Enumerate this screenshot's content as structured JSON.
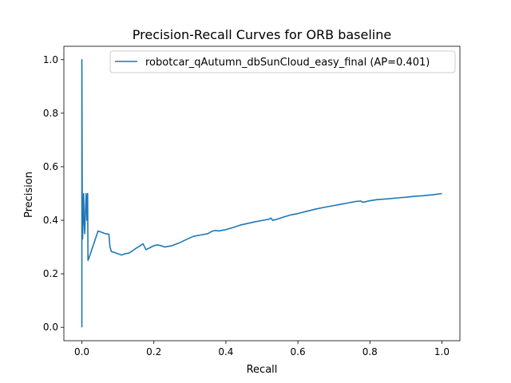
{
  "chart_data": {
    "type": "line",
    "title": "Precision-Recall Curves for ORB baseline",
    "xlabel": "Recall",
    "ylabel": "Precision",
    "xlim": [
      -0.05,
      1.05
    ],
    "ylim": [
      -0.05,
      1.05
    ],
    "xticks": [
      0.0,
      0.2,
      0.4,
      0.6,
      0.8,
      1.0
    ],
    "yticks": [
      0.0,
      0.2,
      0.4,
      0.6,
      0.8,
      1.0
    ],
    "xtick_labels": [
      "0.0",
      "0.2",
      "0.4",
      "0.6",
      "0.8",
      "1.0"
    ],
    "ytick_labels": [
      "0.0",
      "0.2",
      "0.4",
      "0.6",
      "0.8",
      "1.0"
    ],
    "grid": false,
    "legend_position": "top-right",
    "series": [
      {
        "name": "robotcar_qAutumn_dbSunCloud_easy_final (AP=0.401)",
        "color": "#1f77b4",
        "x": [
          0.0,
          0.0,
          0.001,
          0.002,
          0.003,
          0.005,
          0.006,
          0.008,
          0.01,
          0.012,
          0.014,
          0.016,
          0.017,
          0.02,
          0.025,
          0.035,
          0.045,
          0.055,
          0.065,
          0.075,
          0.078,
          0.082,
          0.09,
          0.1,
          0.11,
          0.12,
          0.13,
          0.14,
          0.15,
          0.16,
          0.17,
          0.178,
          0.19,
          0.2,
          0.21,
          0.22,
          0.23,
          0.25,
          0.27,
          0.29,
          0.31,
          0.33,
          0.35,
          0.36,
          0.37,
          0.38,
          0.4,
          0.42,
          0.44,
          0.46,
          0.48,
          0.5,
          0.52,
          0.525,
          0.53,
          0.54,
          0.56,
          0.58,
          0.6,
          0.62,
          0.65,
          0.68,
          0.7,
          0.72,
          0.74,
          0.76,
          0.775,
          0.78,
          0.79,
          0.8,
          0.82,
          0.85,
          0.88,
          0.9,
          0.92,
          0.95,
          0.98,
          1.0
        ],
        "y": [
          0.0,
          1.0,
          0.5,
          0.33,
          0.4,
          0.5,
          0.4,
          0.35,
          0.44,
          0.5,
          0.4,
          0.5,
          0.25,
          0.26,
          0.28,
          0.32,
          0.36,
          0.355,
          0.35,
          0.348,
          0.3,
          0.283,
          0.28,
          0.275,
          0.27,
          0.275,
          0.277,
          0.285,
          0.295,
          0.303,
          0.312,
          0.29,
          0.298,
          0.305,
          0.308,
          0.305,
          0.3,
          0.305,
          0.315,
          0.328,
          0.34,
          0.345,
          0.35,
          0.358,
          0.362,
          0.36,
          0.365,
          0.373,
          0.382,
          0.388,
          0.394,
          0.399,
          0.404,
          0.408,
          0.4,
          0.403,
          0.412,
          0.42,
          0.425,
          0.432,
          0.442,
          0.45,
          0.455,
          0.46,
          0.465,
          0.47,
          0.472,
          0.467,
          0.47,
          0.473,
          0.477,
          0.48,
          0.484,
          0.486,
          0.489,
          0.492,
          0.496,
          0.5
        ]
      }
    ]
  }
}
